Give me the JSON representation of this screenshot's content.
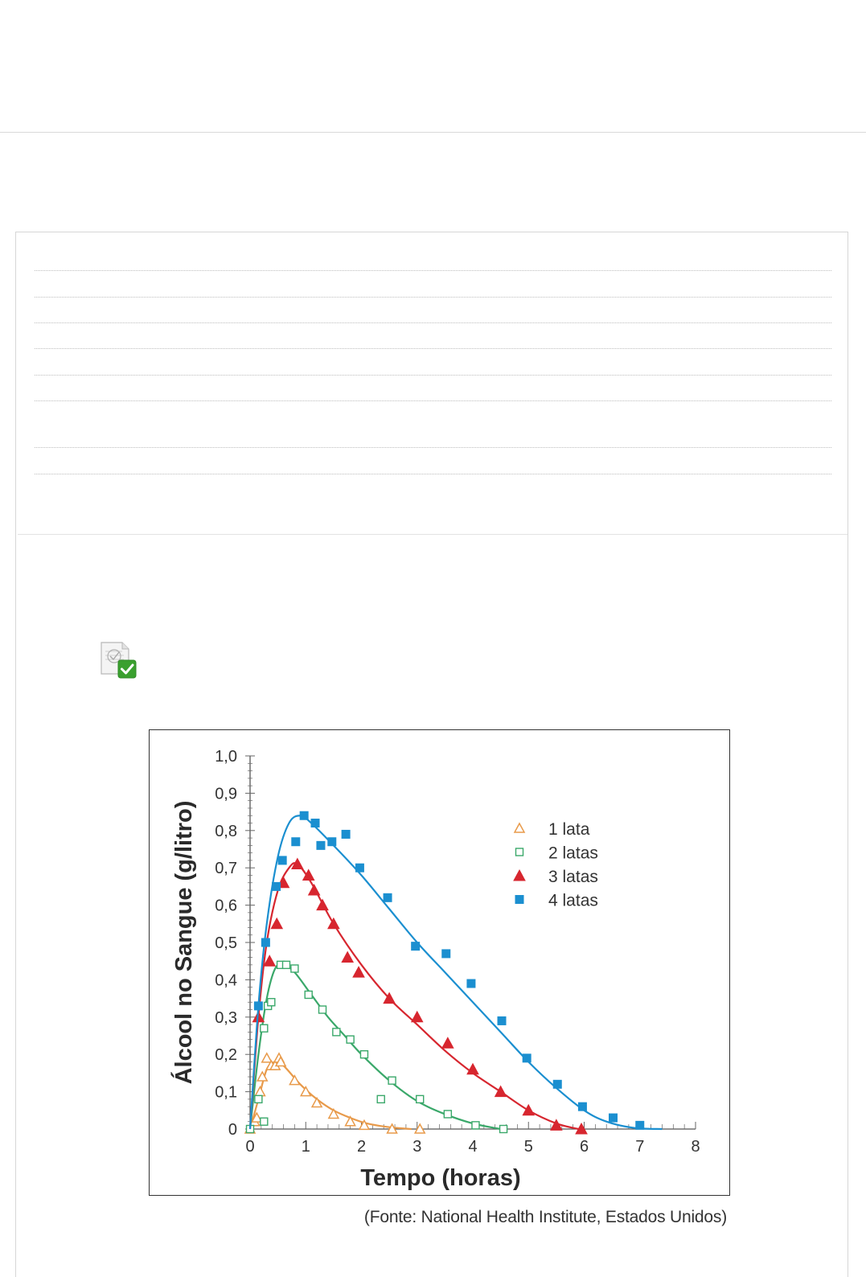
{
  "icons": {
    "status": "checked-document-icon"
  },
  "colors": {
    "one_can": "#e89a4a",
    "two_cans": "#3aa86a",
    "three_cans": "#d7262f",
    "four_cans": "#1b8fd0",
    "status_check": "#3aa02f"
  },
  "chart_data": {
    "type": "scatter",
    "title": "",
    "xlabel": "Tempo (horas)",
    "ylabel": "Álcool no Sangue (g/litro)",
    "xlim": [
      0,
      8
    ],
    "ylim": [
      0,
      1.0
    ],
    "x_ticks": [
      "0",
      "1",
      "2",
      "3",
      "4",
      "5",
      "6",
      "7",
      "8"
    ],
    "y_ticks": [
      "0",
      "0,1",
      "0,2",
      "0,3",
      "0,4",
      "0,5",
      "0,6",
      "0,7",
      "0,8",
      "0,9",
      "1,0"
    ],
    "grid": false,
    "legend_position": "top-right",
    "source": "(Fonte: National Health Institute, Estados Unidos)",
    "series": [
      {
        "name": "1 lata",
        "marker": "open-triangle",
        "color": "#e89a4a",
        "points": [
          [
            0,
            0
          ],
          [
            0.08,
            0.02
          ],
          [
            0.12,
            0.03
          ],
          [
            0.18,
            0.1
          ],
          [
            0.22,
            0.14
          ],
          [
            0.3,
            0.19
          ],
          [
            0.38,
            0.17
          ],
          [
            0.45,
            0.17
          ],
          [
            0.52,
            0.19
          ],
          [
            0.55,
            0.18
          ],
          [
            0.8,
            0.13
          ],
          [
            1.0,
            0.1
          ],
          [
            1.2,
            0.07
          ],
          [
            1.5,
            0.04
          ],
          [
            1.8,
            0.02
          ],
          [
            2.05,
            0.01
          ],
          [
            2.55,
            0.0
          ],
          [
            3.05,
            0.0
          ]
        ],
        "curve": [
          [
            0,
            0
          ],
          [
            0.15,
            0.08
          ],
          [
            0.3,
            0.16
          ],
          [
            0.45,
            0.18
          ],
          [
            0.6,
            0.17
          ],
          [
            0.9,
            0.12
          ],
          [
            1.2,
            0.08
          ],
          [
            1.5,
            0.05
          ],
          [
            1.8,
            0.03
          ],
          [
            2.1,
            0.015
          ],
          [
            2.5,
            0.005
          ],
          [
            2.9,
            0.0
          ]
        ]
      },
      {
        "name": "2 latas",
        "marker": "open-square",
        "color": "#3aa86a",
        "points": [
          [
            0,
            0
          ],
          [
            0.15,
            0.08
          ],
          [
            0.25,
            0.02
          ],
          [
            0.25,
            0.27
          ],
          [
            0.32,
            0.33
          ],
          [
            0.38,
            0.34
          ],
          [
            0.55,
            0.44
          ],
          [
            0.65,
            0.44
          ],
          [
            0.8,
            0.43
          ],
          [
            1.05,
            0.36
          ],
          [
            1.3,
            0.32
          ],
          [
            1.55,
            0.26
          ],
          [
            1.8,
            0.24
          ],
          [
            2.05,
            0.2
          ],
          [
            2.35,
            0.08
          ],
          [
            2.55,
            0.13
          ],
          [
            3.05,
            0.08
          ],
          [
            3.55,
            0.04
          ],
          [
            4.05,
            0.01
          ],
          [
            4.55,
            0.0
          ]
        ],
        "curve": [
          [
            0,
            0
          ],
          [
            0.15,
            0.2
          ],
          [
            0.3,
            0.35
          ],
          [
            0.45,
            0.43
          ],
          [
            0.6,
            0.44
          ],
          [
            0.8,
            0.42
          ],
          [
            1.1,
            0.36
          ],
          [
            1.4,
            0.3
          ],
          [
            1.7,
            0.25
          ],
          [
            2.0,
            0.2
          ],
          [
            2.5,
            0.13
          ],
          [
            3.0,
            0.075
          ],
          [
            3.5,
            0.04
          ],
          [
            4.0,
            0.015
          ],
          [
            4.5,
            0.0
          ]
        ]
      },
      {
        "name": "3 latas",
        "marker": "filled-triangle",
        "color": "#d7262f",
        "points": [
          [
            0.15,
            0.3
          ],
          [
            0.35,
            0.45
          ],
          [
            0.48,
            0.55
          ],
          [
            0.6,
            0.66
          ],
          [
            0.85,
            0.71
          ],
          [
            1.05,
            0.68
          ],
          [
            1.15,
            0.64
          ],
          [
            1.3,
            0.6
          ],
          [
            1.5,
            0.55
          ],
          [
            1.75,
            0.46
          ],
          [
            1.95,
            0.42
          ],
          [
            2.5,
            0.35
          ],
          [
            3.0,
            0.3
          ],
          [
            3.55,
            0.23
          ],
          [
            4.0,
            0.16
          ],
          [
            4.5,
            0.1
          ],
          [
            5.0,
            0.05
          ],
          [
            5.5,
            0.01
          ],
          [
            5.95,
            0.0
          ]
        ],
        "curve": [
          [
            0,
            0
          ],
          [
            0.15,
            0.3
          ],
          [
            0.3,
            0.5
          ],
          [
            0.5,
            0.64
          ],
          [
            0.7,
            0.7
          ],
          [
            0.85,
            0.71
          ],
          [
            1.1,
            0.66
          ],
          [
            1.5,
            0.55
          ],
          [
            2.0,
            0.44
          ],
          [
            2.5,
            0.35
          ],
          [
            3.0,
            0.28
          ],
          [
            3.5,
            0.21
          ],
          [
            4.0,
            0.15
          ],
          [
            4.5,
            0.1
          ],
          [
            5.0,
            0.05
          ],
          [
            5.5,
            0.015
          ],
          [
            5.9,
            0.0
          ]
        ]
      },
      {
        "name": "4 latas",
        "marker": "filled-square",
        "color": "#1b8fd0",
        "points": [
          [
            0.15,
            0.33
          ],
          [
            0.28,
            0.5
          ],
          [
            0.47,
            0.65
          ],
          [
            0.58,
            0.72
          ],
          [
            0.82,
            0.77
          ],
          [
            0.97,
            0.84
          ],
          [
            1.17,
            0.82
          ],
          [
            1.27,
            0.76
          ],
          [
            1.47,
            0.77
          ],
          [
            1.72,
            0.79
          ],
          [
            1.97,
            0.7
          ],
          [
            2.47,
            0.62
          ],
          [
            2.97,
            0.49
          ],
          [
            3.52,
            0.47
          ],
          [
            3.97,
            0.39
          ],
          [
            4.52,
            0.29
          ],
          [
            4.97,
            0.19
          ],
          [
            5.52,
            0.12
          ],
          [
            5.97,
            0.06
          ],
          [
            6.52,
            0.03
          ],
          [
            7.0,
            0.01
          ]
        ],
        "curve": [
          [
            0,
            0
          ],
          [
            0.15,
            0.33
          ],
          [
            0.3,
            0.55
          ],
          [
            0.5,
            0.73
          ],
          [
            0.7,
            0.82
          ],
          [
            0.9,
            0.84
          ],
          [
            1.1,
            0.82
          ],
          [
            1.5,
            0.76
          ],
          [
            2.0,
            0.68
          ],
          [
            2.5,
            0.59
          ],
          [
            3.0,
            0.5
          ],
          [
            3.5,
            0.42
          ],
          [
            4.0,
            0.34
          ],
          [
            4.5,
            0.26
          ],
          [
            5.0,
            0.18
          ],
          [
            5.5,
            0.11
          ],
          [
            6.0,
            0.05
          ],
          [
            6.4,
            0.02
          ],
          [
            6.9,
            0.003
          ],
          [
            7.4,
            0.0
          ]
        ]
      }
    ]
  }
}
